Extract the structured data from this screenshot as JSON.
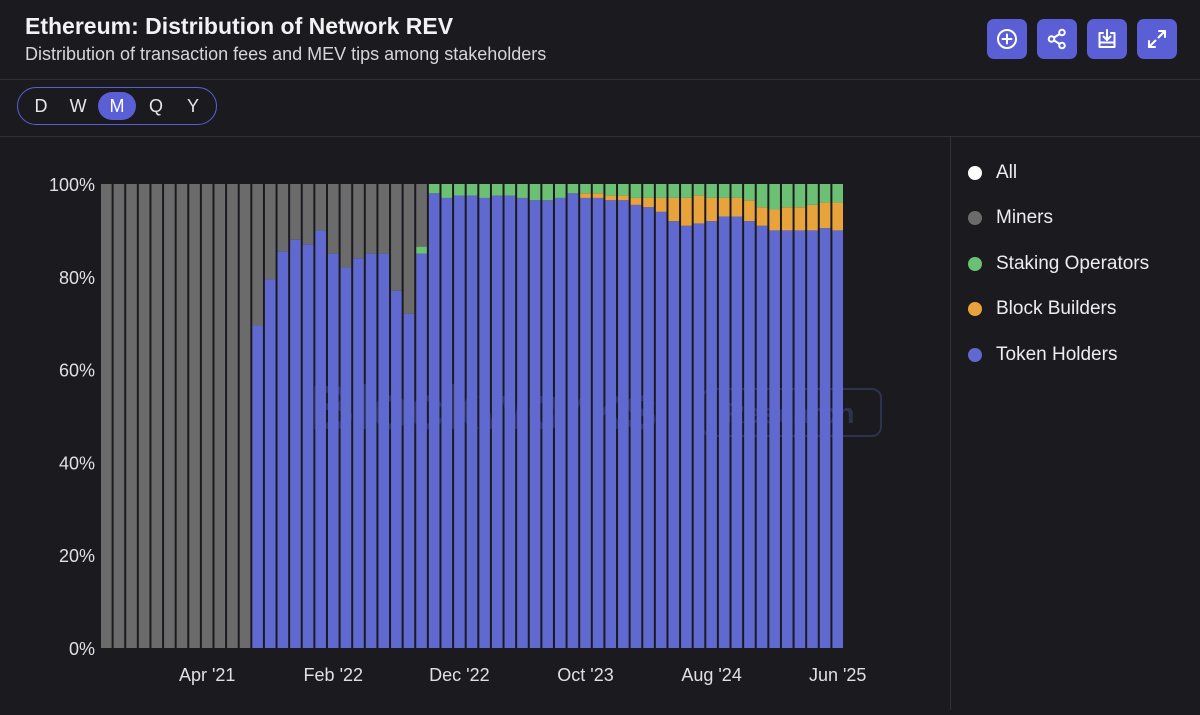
{
  "header": {
    "title": "Ethereum: Distribution of Network REV",
    "subtitle": "Distribution of transaction fees and MEV tips among stakeholders"
  },
  "actions": [
    {
      "icon": "plus-circle-icon"
    },
    {
      "icon": "share-icon"
    },
    {
      "icon": "download-icon"
    },
    {
      "icon": "expand-icon"
    }
  ],
  "periods": {
    "options": [
      "D",
      "W",
      "M",
      "Q",
      "Y"
    ],
    "selected": "M"
  },
  "watermark": {
    "brand": "Blockworks",
    "tag": "Research"
  },
  "legend": [
    {
      "label": "All",
      "color": "#ffffff"
    },
    {
      "label": "Miners",
      "color": "#6b6b6b"
    },
    {
      "label": "Staking Operators",
      "color": "#6cc073"
    },
    {
      "label": "Block Builders",
      "color": "#e8a33c"
    },
    {
      "label": "Token Holders",
      "color": "#5f69cf"
    }
  ],
  "chart_data": {
    "type": "bar",
    "stacked": true,
    "normalized": true,
    "ylim": [
      0,
      100
    ],
    "yticks": [
      "0%",
      "20%",
      "40%",
      "60%",
      "80%",
      "100%"
    ],
    "xtick_labels": [
      {
        "label": "Apr '21",
        "index": 8
      },
      {
        "label": "Feb '22",
        "index": 18
      },
      {
        "label": "Dec '22",
        "index": 28
      },
      {
        "label": "Oct '23",
        "index": 38
      },
      {
        "label": "Aug '24",
        "index": 48
      },
      {
        "label": "Jun '25",
        "index": 58
      }
    ],
    "series": [
      {
        "name": "Token Holders",
        "color": "#5f69cf",
        "values": [
          0,
          0,
          0,
          0,
          0,
          0,
          0,
          0,
          0,
          0,
          0,
          0,
          69.5,
          79.5,
          85.5,
          88,
          87,
          90,
          85,
          82,
          84,
          85,
          85,
          77,
          72,
          85,
          98,
          97,
          97.5,
          97.5,
          97,
          97.5,
          97.5,
          97,
          96.5,
          96.5,
          97,
          98,
          97,
          97,
          96.5,
          96.5,
          95.5,
          95,
          94,
          92,
          91,
          91.5,
          92,
          93,
          93,
          92,
          91,
          90,
          90,
          90,
          90,
          90.5,
          90
        ]
      },
      {
        "name": "Block Builders",
        "color": "#e8a33c",
        "values": [
          0,
          0,
          0,
          0,
          0,
          0,
          0,
          0,
          0,
          0,
          0,
          0,
          0,
          0,
          0,
          0,
          0,
          0,
          0,
          0,
          0,
          0,
          0,
          0,
          0,
          0,
          0,
          0,
          0,
          0,
          0,
          0,
          0,
          0,
          0,
          0,
          0,
          0,
          1,
          1,
          1,
          1,
          1.5,
          2,
          3,
          5,
          6,
          6,
          5,
          4,
          4,
          4.5,
          4,
          4.5,
          5,
          5,
          5.5,
          5.5,
          6
        ]
      },
      {
        "name": "Staking Operators",
        "color": "#6cc073",
        "values": [
          0,
          0,
          0,
          0,
          0,
          0,
          0,
          0,
          0,
          0,
          0,
          0,
          0,
          0,
          0,
          0,
          0,
          0,
          0,
          0,
          0,
          0,
          0,
          0,
          0,
          1.5,
          2,
          3,
          2.5,
          2.5,
          3,
          2.5,
          2.5,
          3,
          3.5,
          3.5,
          3,
          2,
          2,
          2,
          2.5,
          2.5,
          3,
          3,
          3,
          3,
          3,
          2.5,
          3,
          3,
          3,
          3.5,
          5,
          5.5,
          5,
          5,
          4.5,
          4,
          4
        ]
      },
      {
        "name": "Miners",
        "color": "#6b6b6b",
        "values": [
          100,
          100,
          100,
          100,
          100,
          100,
          100,
          100,
          100,
          100,
          100,
          100,
          30.5,
          20.5,
          14.5,
          12,
          13,
          10,
          15,
          18,
          16,
          15,
          15,
          23,
          28,
          13.5,
          0,
          0,
          0,
          0,
          0,
          0,
          0,
          0,
          0,
          0,
          0,
          0,
          0,
          0,
          0,
          0,
          0,
          0,
          0,
          0,
          0,
          0,
          0,
          0,
          0,
          0,
          0,
          0,
          0,
          0,
          0,
          0,
          0
        ]
      }
    ]
  }
}
